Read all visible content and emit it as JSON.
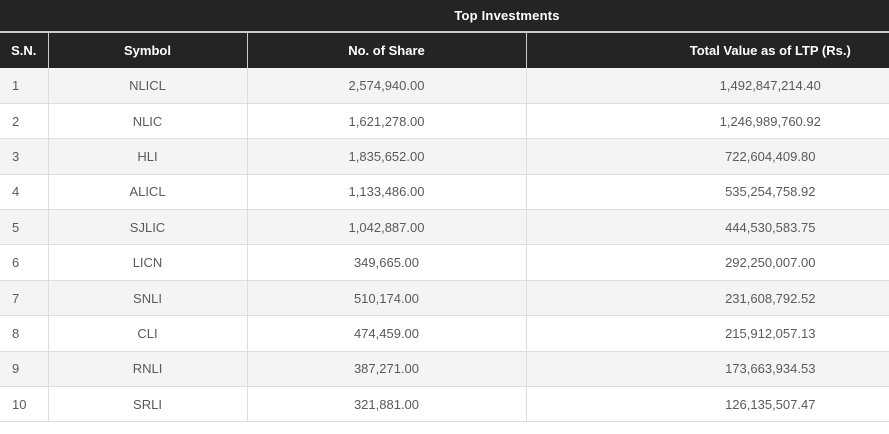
{
  "table": {
    "title": "Top Investments",
    "columns": [
      "S.N.",
      "Symbol",
      "No. of Share",
      "Total Value as of LTP (Rs.)"
    ],
    "rows": [
      {
        "sn": "1",
        "symbol": "NLICL",
        "shares": "2,574,940.00",
        "total": "1,492,847,214.40"
      },
      {
        "sn": "2",
        "symbol": "NLIC",
        "shares": "1,621,278.00",
        "total": "1,246,989,760.92"
      },
      {
        "sn": "3",
        "symbol": "HLI",
        "shares": "1,835,652.00",
        "total": "722,604,409.80"
      },
      {
        "sn": "4",
        "symbol": "ALICL",
        "shares": "1,133,486.00",
        "total": "535,254,758.92"
      },
      {
        "sn": "5",
        "symbol": "SJLIC",
        "shares": "1,042,887.00",
        "total": "444,530,583.75"
      },
      {
        "sn": "6",
        "symbol": "LICN",
        "shares": "349,665.00",
        "total": "292,250,007.00"
      },
      {
        "sn": "7",
        "symbol": "SNLI",
        "shares": "510,174.00",
        "total": "231,608,792.52"
      },
      {
        "sn": "8",
        "symbol": "CLI",
        "shares": "474,459.00",
        "total": "215,912,057.13"
      },
      {
        "sn": "9",
        "symbol": "RNLI",
        "shares": "387,271.00",
        "total": "173,663,934.53"
      },
      {
        "sn": "10",
        "symbol": "SRLI",
        "shares": "321,881.00",
        "total": "126,135,507.47"
      }
    ]
  },
  "colors": {
    "header_bg": "#242424",
    "header_text": "#ffffff",
    "stripe_bg": "#f4f4f4",
    "row_bg": "#ffffff",
    "body_text": "#5a5a5a",
    "divider": "#c9c9c9",
    "row_border": "#dddddd"
  },
  "chart_data": {
    "type": "table",
    "title": "Top Investments",
    "columns": [
      "S.N.",
      "Symbol",
      "No. of Share",
      "Total Value as of LTP (Rs.)"
    ],
    "rows": [
      [
        1,
        "NLICL",
        2574940.0,
        1492847214.4
      ],
      [
        2,
        "NLIC",
        1621278.0,
        1246989760.92
      ],
      [
        3,
        "HLI",
        1835652.0,
        722604409.8
      ],
      [
        4,
        "ALICL",
        1133486.0,
        535254758.92
      ],
      [
        5,
        "SJLIC",
        1042887.0,
        444530583.75
      ],
      [
        6,
        "LICN",
        349665.0,
        292250007.0
      ],
      [
        7,
        "SNLI",
        510174.0,
        231608792.52
      ],
      [
        8,
        "CLI",
        474459.0,
        215912057.13
      ],
      [
        9,
        "RNLI",
        387271.0,
        173663934.53
      ],
      [
        10,
        "SRLI",
        321881.0,
        126135507.47
      ]
    ]
  }
}
